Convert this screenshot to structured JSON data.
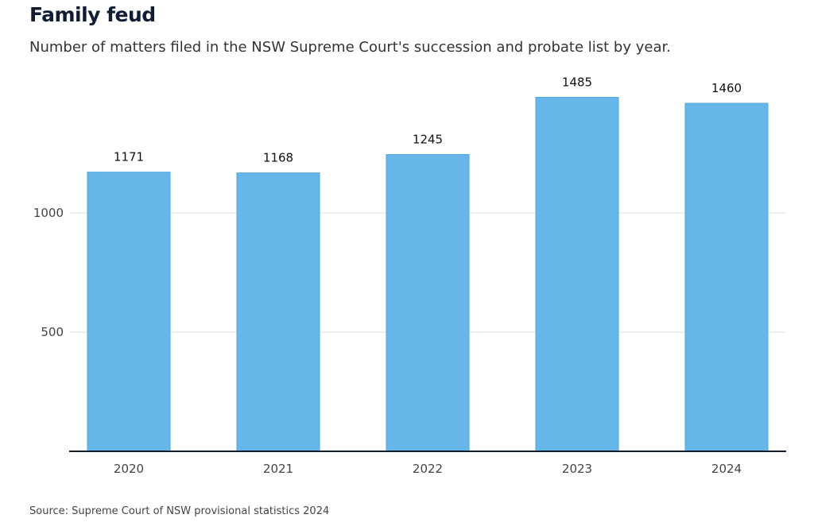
{
  "title": "Family feud",
  "subtitle": "Number of matters filed in the NSW Supreme Court's succession and probate list by year.",
  "source": "Source: Supreme Court of NSW provisional statistics 2024",
  "colors": {
    "bar": "#67b6e9",
    "bar_edge": "#4ea6df",
    "axis": "#0f1e33",
    "grid": "#e2e2e2"
  },
  "chart_data": {
    "type": "bar",
    "categories": [
      "2020",
      "2021",
      "2022",
      "2023",
      "2024"
    ],
    "values": [
      1171,
      1168,
      1245,
      1485,
      1460
    ],
    "data_labels": [
      "1171",
      "1168",
      "1245",
      "1485",
      "1460"
    ],
    "title": "Family feud",
    "xlabel": "",
    "ylabel": "",
    "ylim": [
      0,
      1500
    ],
    "yticks": [
      500,
      1000
    ],
    "ytick_labels": [
      "500",
      "1000"
    ],
    "grid": true,
    "legend": "none"
  }
}
